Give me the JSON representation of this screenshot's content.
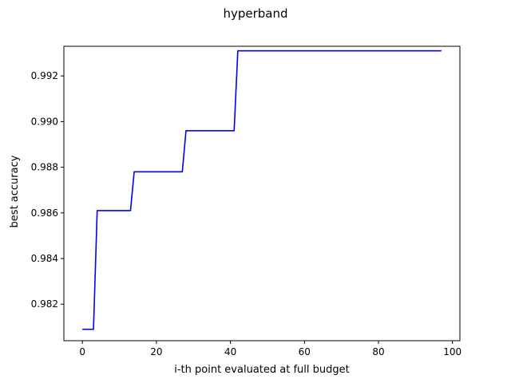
{
  "chart_data": {
    "type": "line",
    "title": "hyperband",
    "xlabel": "i-th point evaluated at full budget",
    "ylabel": "best accuracy",
    "xlim": [
      -5,
      102
    ],
    "ylim": [
      0.9804,
      0.9933
    ],
    "grid": false,
    "xticks": [
      0,
      20,
      40,
      60,
      80,
      100
    ],
    "xtick_labels": [
      "0",
      "20",
      "40",
      "60",
      "80",
      "100"
    ],
    "yticks": [
      0.982,
      0.984,
      0.986,
      0.988,
      0.99,
      0.992
    ],
    "ytick_labels": [
      "0.982",
      "0.984",
      "0.986",
      "0.988",
      "0.990",
      "0.992"
    ],
    "series": [
      {
        "color": "#0000ff",
        "x": [
          0,
          3,
          4,
          13,
          14,
          27,
          28,
          41,
          42,
          97
        ],
        "y": [
          0.9809,
          0.9809,
          0.9861,
          0.9861,
          0.9878,
          0.9878,
          0.9896,
          0.9896,
          0.9931,
          0.9931
        ]
      }
    ]
  }
}
